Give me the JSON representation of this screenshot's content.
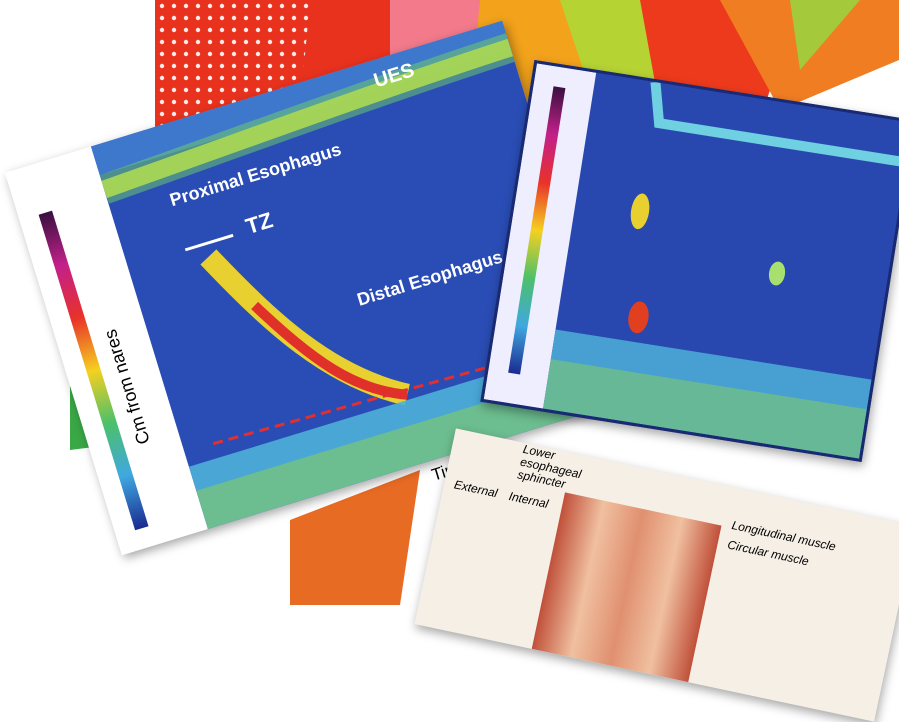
{
  "labels": {
    "ues": "UES",
    "proximal": "Proximal Esophagus",
    "tz": "TZ",
    "distal": "Distal Esophagus",
    "y_axis": "Cm from nares",
    "x_axis": "Time"
  },
  "anatomy": {
    "lower": "Lower",
    "esophageal": "esophageal",
    "sphincter": "sphincter",
    "external": "External",
    "internal": "Internal",
    "longitudinal": "Longitudinal muscle",
    "circular": "Circular muscle"
  }
}
